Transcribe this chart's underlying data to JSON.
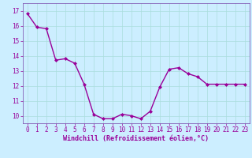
{
  "x": [
    0,
    1,
    2,
    3,
    4,
    5,
    6,
    7,
    8,
    9,
    10,
    11,
    12,
    13,
    14,
    15,
    16,
    17,
    18,
    19,
    20,
    21,
    22,
    23
  ],
  "y": [
    16.8,
    15.9,
    15.8,
    13.7,
    13.8,
    13.5,
    12.1,
    10.1,
    9.8,
    9.8,
    10.1,
    10.0,
    9.8,
    10.3,
    11.9,
    13.1,
    13.2,
    12.8,
    12.6,
    12.1,
    12.1,
    12.1,
    12.1,
    12.1
  ],
  "line_color": "#990099",
  "marker": "D",
  "marker_size": 2.0,
  "linewidth": 1.0,
  "xlabel": "Windchill (Refroidissement éolien,°C)",
  "xlabel_fontsize": 6.0,
  "ylim": [
    9.5,
    17.5
  ],
  "xlim": [
    -0.5,
    23.5
  ],
  "yticks": [
    10,
    11,
    12,
    13,
    14,
    15,
    16,
    17
  ],
  "xticks": [
    0,
    1,
    2,
    3,
    4,
    5,
    6,
    7,
    8,
    9,
    10,
    11,
    12,
    13,
    14,
    15,
    16,
    17,
    18,
    19,
    20,
    21,
    22,
    23
  ],
  "tick_fontsize": 5.5,
  "bg_color": "#cceeff",
  "grid_color": "#aadddd",
  "spine_color": "#7744aa",
  "tick_color": "#990099"
}
